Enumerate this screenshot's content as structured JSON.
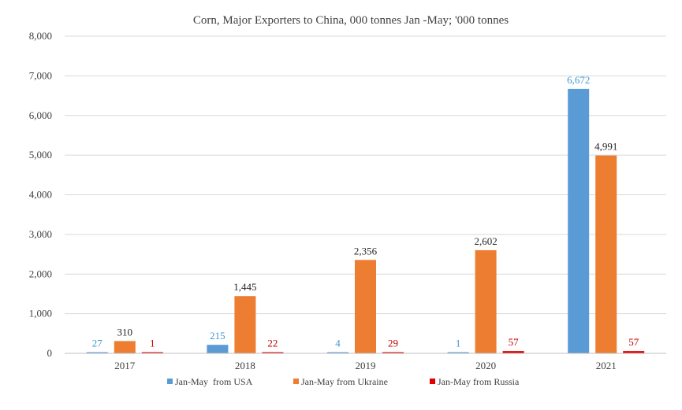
{
  "chart_data": {
    "type": "bar",
    "title": "Corn, Major Exporters to China, 000 tonnes Jan -May; '000 tonnes",
    "xlabel": "",
    "ylabel": "",
    "categories": [
      "2017",
      "2018",
      "2019",
      "2020",
      "2021"
    ],
    "ylim": [
      0,
      8000
    ],
    "yticks": [
      0,
      1000,
      2000,
      3000,
      4000,
      5000,
      6000,
      7000,
      8000
    ],
    "ytick_labels": [
      "0",
      "1,000",
      "2,000",
      "3,000",
      "4,000",
      "5,000",
      "6,000",
      "7,000",
      "8,000"
    ],
    "grid": true,
    "legend_position": "bottom",
    "series": [
      {
        "name": "Jan-May  from USA",
        "color": "#5b9bd5",
        "label_color": "#3d9ad1",
        "values": [
          27,
          215,
          4,
          1,
          6672
        ],
        "labels": [
          "27",
          "215",
          "4",
          "1",
          "6,672"
        ]
      },
      {
        "name": "Jan-May from Ukraine",
        "color": "#ed7d31",
        "label_color": "#262626",
        "values": [
          310,
          1445,
          2356,
          2602,
          4991
        ],
        "labels": [
          "310",
          "1,445",
          "2,356",
          "2,602",
          "4,991"
        ]
      },
      {
        "name": "Jan-May from Russia",
        "color": "#e00000",
        "label_color": "#c00000",
        "values": [
          1,
          22,
          29,
          57,
          57
        ],
        "labels": [
          "1",
          "22",
          "29",
          "57",
          "57"
        ]
      }
    ]
  }
}
